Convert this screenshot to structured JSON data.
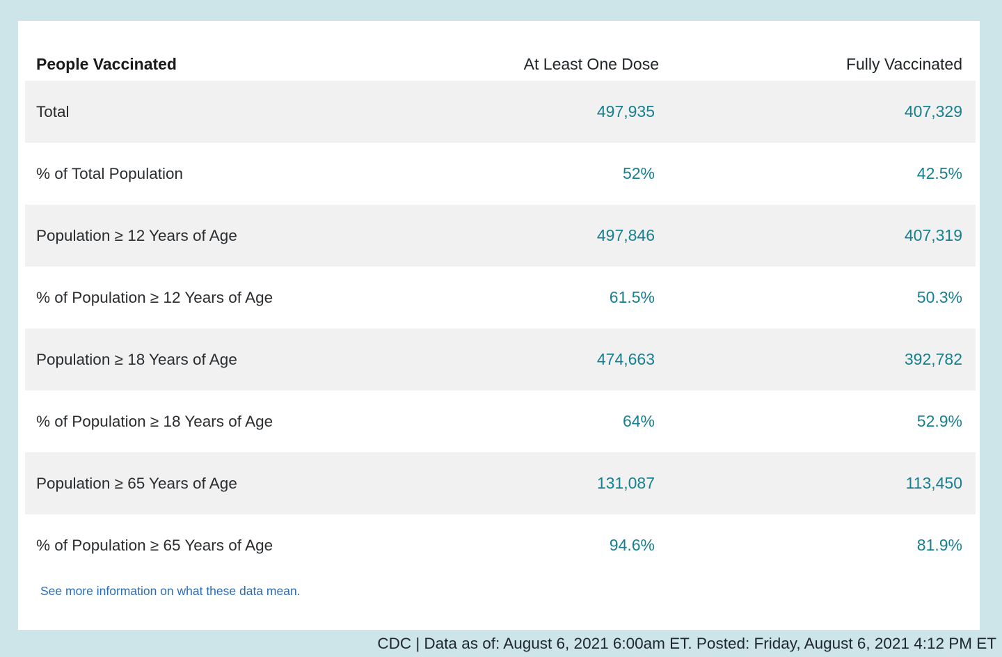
{
  "table": {
    "header": {
      "label": "People Vaccinated",
      "col_one_dose": "At Least One Dose",
      "col_fully": "Fully Vaccinated"
    },
    "rows": [
      {
        "label": "Total",
        "one_dose": "497,935",
        "fully": "407,329"
      },
      {
        "label": "% of Total Population",
        "one_dose": "52%",
        "fully": "42.5%"
      },
      {
        "label": "Population ≥ 12 Years of Age",
        "one_dose": "497,846",
        "fully": "407,319"
      },
      {
        "label": "% of Population ≥ 12 Years of Age",
        "one_dose": "61.5%",
        "fully": "50.3%"
      },
      {
        "label": "Population ≥ 18 Years of Age",
        "one_dose": "474,663",
        "fully": "392,782"
      },
      {
        "label": "% of Population ≥ 18 Years of Age",
        "one_dose": "64%",
        "fully": "52.9%"
      },
      {
        "label": "Population ≥ 65 Years of Age",
        "one_dose": "131,087",
        "fully": "113,450"
      },
      {
        "label": "% of Population ≥ 65 Years of Age",
        "one_dose": "94.6%",
        "fully": "81.9%"
      }
    ],
    "link_text": "See more information on what these data mean."
  },
  "footer": {
    "text": "CDC | Data as of: August 6, 2021 6:00am ET. Posted: Friday, August 6, 2021 4:12 PM ET"
  },
  "colors": {
    "background": "#cde4e8",
    "card": "#ffffff",
    "stripe": "#f1f1f1",
    "value_teal": "#16808f",
    "link_blue": "#2b6cb5",
    "text_dark": "#202528"
  }
}
